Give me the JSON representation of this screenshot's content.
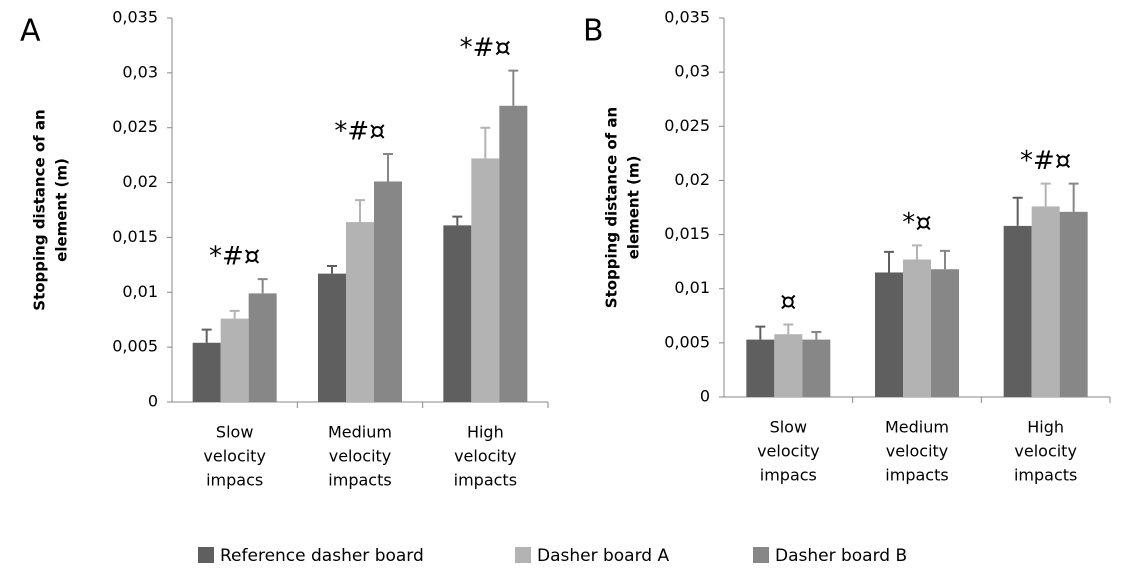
{
  "chart_data": [
    {
      "type": "bar",
      "panel": "A",
      "ylabel": [
        "Stopping distance of an",
        "element (m)"
      ],
      "categories": [
        [
          "Slow",
          "velocity",
          "impacs"
        ],
        [
          "Medium",
          "velocity",
          "impacts"
        ],
        [
          "High",
          "velocity",
          "impacts"
        ]
      ],
      "annotations": [
        "*#¤",
        "*#¤",
        "*#¤"
      ],
      "series": [
        {
          "name": "Reference dasher board",
          "color": "#5f5f5f",
          "values": [
            0.0054,
            0.0117,
            0.0161
          ],
          "errors": [
            0.0012,
            0.0007,
            0.0008
          ]
        },
        {
          "name": "Dasher board A",
          "color": "#b3b3b3",
          "values": [
            0.0076,
            0.0164,
            0.0222
          ],
          "errors": [
            0.0007,
            0.002,
            0.0028
          ]
        },
        {
          "name": "Dasher board B",
          "color": "#878787",
          "values": [
            0.0099,
            0.0201,
            0.027
          ],
          "errors": [
            0.0013,
            0.0025,
            0.0032
          ]
        }
      ],
      "ylim": [
        0,
        0.035
      ],
      "yticks": [
        0,
        {
          "value": 0.005,
          "label": "0,005"
        },
        {
          "value": 0.01,
          "label": "0,01"
        },
        {
          "value": 0.015,
          "label": "0,015"
        },
        {
          "value": 0.02,
          "label": "0,02"
        },
        {
          "value": 0.025,
          "label": "0,025"
        },
        {
          "value": 0.03,
          "label": "0,03"
        },
        {
          "value": 0.035,
          "label": "0,035"
        }
      ],
      "grid": false
    },
    {
      "type": "bar",
      "panel": "B",
      "ylabel": [
        "Stopping distance of an",
        "element (m)"
      ],
      "categories": [
        [
          "Slow",
          "velocity",
          "impacs"
        ],
        [
          "Medium",
          "velocity",
          "impacts"
        ],
        [
          "High",
          "velocity",
          "impacts"
        ]
      ],
      "annotations": [
        "¤",
        "*¤",
        "*#¤"
      ],
      "series": [
        {
          "color": "#5f5f5f",
          "values": [
            0.0053,
            0.0115,
            0.0158
          ],
          "errors": [
            0.0012,
            0.0019,
            0.0026
          ]
        },
        {
          "color": "#b3b3b3",
          "values": [
            0.0058,
            0.0127,
            0.0176
          ],
          "errors": [
            0.0009,
            0.0013,
            0.0021
          ]
        },
        {
          "color": "#878787",
          "values": [
            0.0053,
            0.0118,
            0.0171
          ],
          "errors": [
            0.0007,
            0.0017,
            0.0026
          ]
        }
      ],
      "ylim": [
        0,
        0.035
      ],
      "yticks": [
        0,
        {
          "value": 0.005,
          "label": "0,005"
        },
        {
          "value": 0.01,
          "label": "0,01"
        },
        {
          "value": 0.015,
          "label": "0,015"
        },
        {
          "value": 0.02,
          "label": "0,02"
        },
        {
          "value": 0.025,
          "label": "0,025"
        },
        {
          "value": 0.03,
          "label": "0,03"
        },
        {
          "value": 0.035,
          "label": "0,035"
        }
      ],
      "grid": false
    }
  ]
}
